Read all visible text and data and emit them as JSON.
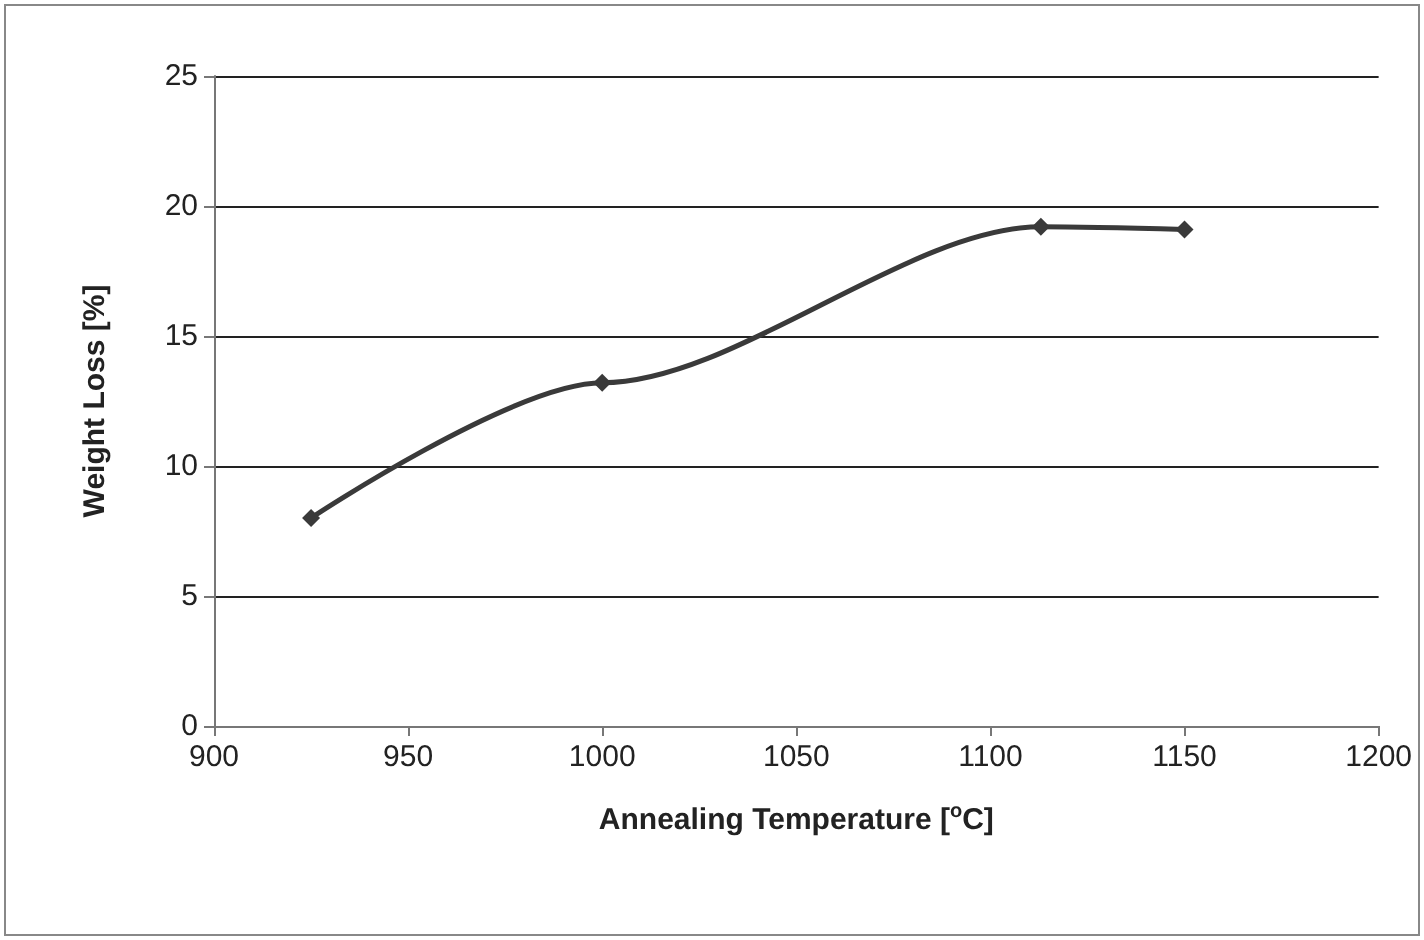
{
  "chart_data": {
    "type": "line",
    "xlabel": "Annealing Temperature [$^{o}$C]",
    "ylabel": "Weight Loss [%]",
    "x": [
      925,
      1000,
      1113,
      1150
    ],
    "series": [
      {
        "color": "#3a3a3a",
        "values": [
          8,
          13.2,
          19.2,
          19.1
        ]
      }
    ],
    "xlim": [
      900,
      1200
    ],
    "xticks": [
      900,
      950,
      1000,
      1050,
      1100,
      1150,
      1200
    ],
    "ylim": [
      0,
      25
    ],
    "yticks": [
      0,
      5,
      10,
      15,
      20,
      25
    ],
    "grid": "y",
    "marker": "diamond",
    "line_style": "solid"
  }
}
